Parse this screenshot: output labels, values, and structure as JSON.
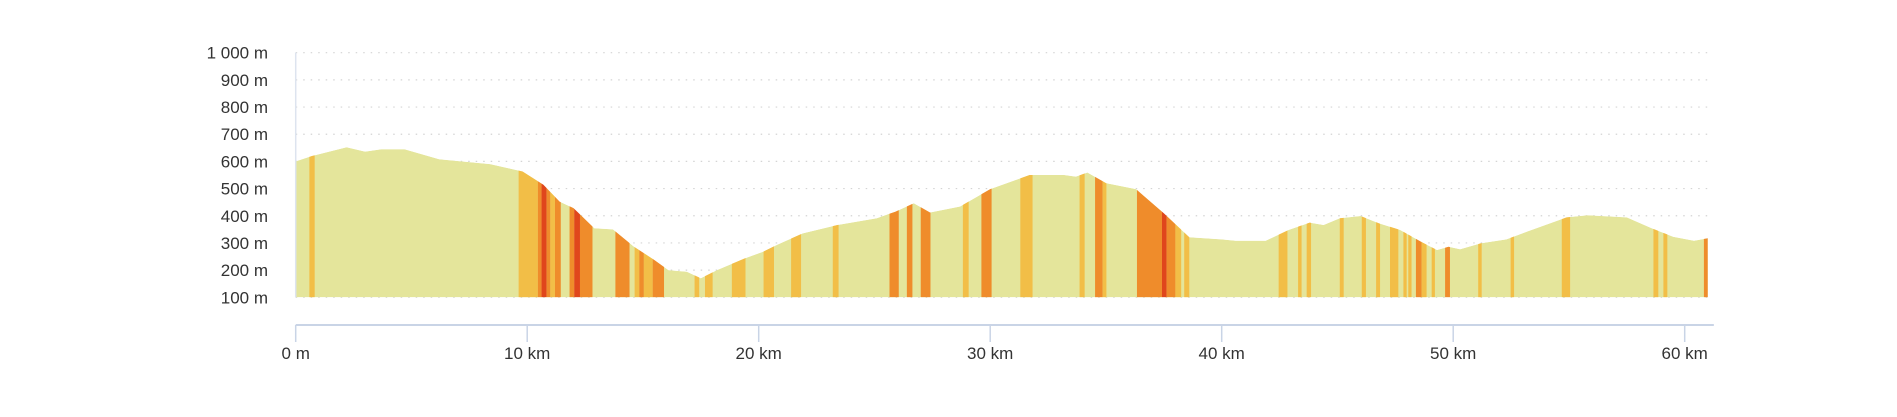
{
  "chart_data": {
    "type": "area",
    "title": "",
    "xlabel": "",
    "ylabel": "",
    "xlim_km": [
      0,
      61
    ],
    "ylim_m": [
      100,
      1000
    ],
    "grid": "horizontal dotted",
    "y_ticks": [
      {
        "value": 1000,
        "label": "1 000 m"
      },
      {
        "value": 900,
        "label": "900 m"
      },
      {
        "value": 800,
        "label": "800 m"
      },
      {
        "value": 700,
        "label": "700 m"
      },
      {
        "value": 600,
        "label": "600 m"
      },
      {
        "value": 500,
        "label": "500 m"
      },
      {
        "value": 400,
        "label": "400 m"
      },
      {
        "value": 300,
        "label": "300 m"
      },
      {
        "value": 200,
        "label": "200 m"
      },
      {
        "value": 100,
        "label": "100 m"
      }
    ],
    "x_ticks": [
      {
        "value": 0,
        "label": "0 m"
      },
      {
        "value": 10,
        "label": "10 km"
      },
      {
        "value": 20,
        "label": "20 km"
      },
      {
        "value": 30,
        "label": "30 km"
      },
      {
        "value": 40,
        "label": "40 km"
      },
      {
        "value": 50,
        "label": "50 km"
      },
      {
        "value": 60,
        "label": "60 km"
      }
    ],
    "profile": {
      "x_km": [
        0,
        0.7,
        2.2,
        3.0,
        3.7,
        4.7,
        6.2,
        8.4,
        9.8,
        10.7,
        11.4,
        12.0,
        12.9,
        13.7,
        14.6,
        15.5,
        16.1,
        16.9,
        17.5,
        18.2,
        19.4,
        20.2,
        20.8,
        21.9,
        23.4,
        25.1,
        25.9,
        26.7,
        27.4,
        28.7,
        30.0,
        31.7,
        33.2,
        33.7,
        34.2,
        35.0,
        36.3,
        37.5,
        38.6,
        40.0,
        40.6,
        41.9,
        42.9,
        43.8,
        44.4,
        45.1,
        46.0,
        46.8,
        47.7,
        48.6,
        49.3,
        49.8,
        50.3,
        51.2,
        52.3,
        53.2,
        54.9,
        55.8,
        57.5,
        58.6,
        59.5,
        60.4,
        61.0
      ],
      "elevation_m": [
        600,
        620,
        652,
        636,
        645,
        645,
        608,
        590,
        563,
        514,
        452,
        428,
        354,
        350,
        287,
        237,
        200,
        194,
        170,
        200,
        243,
        268,
        293,
        335,
        366,
        391,
        415,
        446,
        412,
        434,
        498,
        550,
        550,
        544,
        559,
        520,
        498,
        409,
        321,
        313,
        308,
        308,
        348,
        375,
        366,
        391,
        399,
        372,
        348,
        305,
        274,
        286,
        277,
        299,
        313,
        342,
        394,
        402,
        394,
        353,
        323,
        308,
        317
      ]
    },
    "gradient_colors": {
      "flat": "#e4e59b",
      "moderate": "#f2be47",
      "steep": "#ef8c2b",
      "very_steep": "#e0461c"
    },
    "axis_color": "#c9d4e6",
    "grid_color": "#d4d4d4",
    "gradient_segments": [
      {
        "from": 0.59,
        "to": 0.82,
        "level": "moderate"
      },
      {
        "from": 9.63,
        "to": 10.46,
        "level": "moderate"
      },
      {
        "from": 10.46,
        "to": 10.62,
        "level": "steep"
      },
      {
        "from": 10.62,
        "to": 10.84,
        "level": "very_steep"
      },
      {
        "from": 10.84,
        "to": 11.0,
        "level": "steep"
      },
      {
        "from": 11.0,
        "to": 11.2,
        "level": "moderate"
      },
      {
        "from": 11.2,
        "to": 11.45,
        "level": "steep"
      },
      {
        "from": 11.83,
        "to": 12.03,
        "level": "steep"
      },
      {
        "from": 12.03,
        "to": 12.28,
        "level": "very_steep"
      },
      {
        "from": 12.28,
        "to": 12.82,
        "level": "steep"
      },
      {
        "from": 13.81,
        "to": 14.42,
        "level": "steep"
      },
      {
        "from": 14.64,
        "to": 14.84,
        "level": "moderate"
      },
      {
        "from": 14.84,
        "to": 15.04,
        "level": "steep"
      },
      {
        "from": 15.04,
        "to": 15.42,
        "level": "moderate"
      },
      {
        "from": 15.42,
        "to": 15.91,
        "level": "steep"
      },
      {
        "from": 17.23,
        "to": 17.43,
        "level": "moderate"
      },
      {
        "from": 17.68,
        "to": 18.01,
        "level": "moderate"
      },
      {
        "from": 18.84,
        "to": 19.43,
        "level": "moderate"
      },
      {
        "from": 20.21,
        "to": 20.66,
        "level": "moderate"
      },
      {
        "from": 21.4,
        "to": 21.83,
        "level": "moderate"
      },
      {
        "from": 23.2,
        "to": 23.45,
        "level": "moderate"
      },
      {
        "from": 25.65,
        "to": 26.05,
        "level": "steep"
      },
      {
        "from": 26.4,
        "to": 26.64,
        "level": "steep"
      },
      {
        "from": 27.0,
        "to": 27.42,
        "level": "steep"
      },
      {
        "from": 28.82,
        "to": 29.07,
        "level": "moderate"
      },
      {
        "from": 29.62,
        "to": 30.06,
        "level": "steep"
      },
      {
        "from": 31.3,
        "to": 31.83,
        "level": "moderate"
      },
      {
        "from": 33.86,
        "to": 34.08,
        "level": "moderate"
      },
      {
        "from": 34.53,
        "to": 34.86,
        "level": "steep"
      },
      {
        "from": 34.86,
        "to": 35.02,
        "level": "moderate"
      },
      {
        "from": 36.34,
        "to": 37.42,
        "level": "steep"
      },
      {
        "from": 37.42,
        "to": 37.62,
        "level": "very_steep"
      },
      {
        "from": 37.62,
        "to": 38.0,
        "level": "steep"
      },
      {
        "from": 38.0,
        "to": 38.25,
        "level": "moderate"
      },
      {
        "from": 38.38,
        "to": 38.6,
        "level": "moderate"
      },
      {
        "from": 42.46,
        "to": 42.84,
        "level": "moderate"
      },
      {
        "from": 43.3,
        "to": 43.45,
        "level": "moderate"
      },
      {
        "from": 43.67,
        "to": 43.86,
        "level": "moderate"
      },
      {
        "from": 45.1,
        "to": 45.27,
        "level": "moderate"
      },
      {
        "from": 46.05,
        "to": 46.23,
        "level": "moderate"
      },
      {
        "from": 46.67,
        "to": 46.84,
        "level": "moderate"
      },
      {
        "from": 47.27,
        "to": 47.63,
        "level": "moderate"
      },
      {
        "from": 47.85,
        "to": 47.99,
        "level": "moderate"
      },
      {
        "from": 48.06,
        "to": 48.2,
        "level": "moderate"
      },
      {
        "from": 48.39,
        "to": 48.64,
        "level": "steep"
      },
      {
        "from": 48.64,
        "to": 48.85,
        "level": "moderate"
      },
      {
        "from": 49.07,
        "to": 49.21,
        "level": "moderate"
      },
      {
        "from": 49.65,
        "to": 49.86,
        "level": "steep"
      },
      {
        "from": 51.08,
        "to": 51.23,
        "level": "moderate"
      },
      {
        "from": 52.48,
        "to": 52.63,
        "level": "moderate"
      },
      {
        "from": 54.69,
        "to": 55.05,
        "level": "moderate"
      },
      {
        "from": 58.65,
        "to": 58.86,
        "level": "moderate"
      },
      {
        "from": 59.08,
        "to": 59.25,
        "level": "moderate"
      },
      {
        "from": 60.83,
        "to": 61.0,
        "level": "steep"
      }
    ]
  }
}
